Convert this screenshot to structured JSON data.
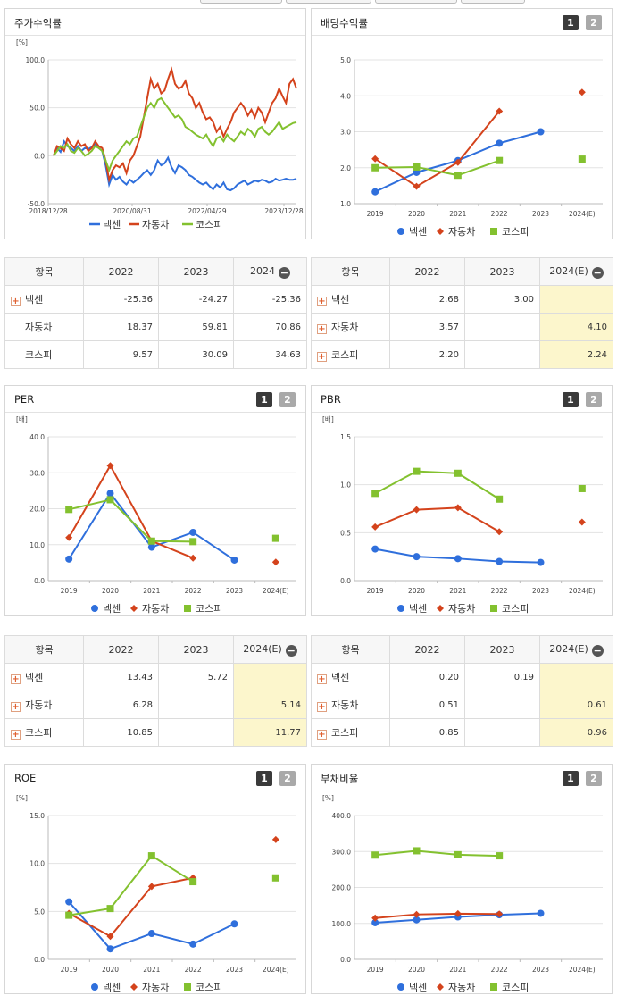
{
  "colors": {
    "nexen": "#2f6fdc",
    "auto": "#d4431c",
    "kospi": "#83c12f"
  },
  "series_names": [
    "넥센",
    "자동차",
    "코스피"
  ],
  "panels": {
    "stock": {
      "title": "주가수익률"
    },
    "dividend": {
      "title": "배당수익률",
      "btn1": "1",
      "btn2": "2"
    },
    "per": {
      "title": "PER",
      "btn1": "1",
      "btn2": "2"
    },
    "pbr": {
      "title": "PBR",
      "btn1": "1",
      "btn2": "2"
    },
    "roe": {
      "title": "ROE",
      "btn1": "1",
      "btn2": "2"
    },
    "debt": {
      "title": "부채비율",
      "btn1": "1",
      "btn2": "2"
    }
  },
  "tables": {
    "stock": {
      "headers": [
        "항목",
        "2022",
        "2023",
        "2024"
      ],
      "rows": [
        {
          "name": "넥센",
          "expand": true,
          "v": [
            "-25.36",
            "-24.27",
            "-25.36"
          ]
        },
        {
          "name": "자동차",
          "expand": false,
          "v": [
            "18.37",
            "59.81",
            "70.86"
          ]
        },
        {
          "name": "코스피",
          "expand": false,
          "v": [
            "9.57",
            "30.09",
            "34.63"
          ]
        }
      ]
    },
    "dividend": {
      "headers": [
        "항목",
        "2022",
        "2023",
        "2024(E)"
      ],
      "rows": [
        {
          "name": "넥센",
          "expand": true,
          "v": [
            "2.68",
            "3.00",
            ""
          ]
        },
        {
          "name": "자동차",
          "expand": true,
          "v": [
            "3.57",
            "",
            "4.10"
          ]
        },
        {
          "name": "코스피",
          "expand": true,
          "v": [
            "2.20",
            "",
            "2.24"
          ]
        }
      ]
    },
    "per": {
      "headers": [
        "항목",
        "2022",
        "2023",
        "2024(E)"
      ],
      "rows": [
        {
          "name": "넥센",
          "expand": true,
          "v": [
            "13.43",
            "5.72",
            ""
          ]
        },
        {
          "name": "자동차",
          "expand": true,
          "v": [
            "6.28",
            "",
            "5.14"
          ]
        },
        {
          "name": "코스피",
          "expand": true,
          "v": [
            "10.85",
            "",
            "11.77"
          ]
        }
      ]
    },
    "pbr": {
      "headers": [
        "항목",
        "2022",
        "2023",
        "2024(E)"
      ],
      "rows": [
        {
          "name": "넥센",
          "expand": true,
          "v": [
            "0.20",
            "0.19",
            ""
          ]
        },
        {
          "name": "자동차",
          "expand": true,
          "v": [
            "0.51",
            "",
            "0.61"
          ]
        },
        {
          "name": "코스피",
          "expand": true,
          "v": [
            "0.85",
            "",
            "0.96"
          ]
        }
      ]
    }
  },
  "chart_data": [
    {
      "id": "stock",
      "type": "line",
      "title": "주가수익률",
      "unit": "[%]",
      "ylim": [
        -50,
        100
      ],
      "yticks": [
        "100.0",
        "50.0",
        "0.0",
        "-50.0"
      ],
      "xticks": [
        "2018/12/28",
        "2020/08/31",
        "2022/04/29",
        "2023/12/28"
      ],
      "series": [
        {
          "name": "넥센",
          "values": [
            0,
            8,
            4,
            15,
            10,
            8,
            5,
            10,
            5,
            8,
            7,
            9,
            12,
            8,
            5,
            -10,
            -30,
            -20,
            -25,
            -22,
            -27,
            -30,
            -25,
            -28,
            -25,
            -22,
            -18,
            -15,
            -20,
            -15,
            -5,
            -10,
            -8,
            -2,
            -12,
            -18,
            -10,
            -12,
            -15,
            -20,
            -22,
            -25,
            -28,
            -30,
            -28,
            -32,
            -35,
            -30,
            -33,
            -28,
            -35,
            -36,
            -34,
            -30,
            -28,
            -26,
            -30,
            -28,
            -26,
            -27,
            -25,
            -26,
            -28,
            -27,
            -24,
            -26,
            -25,
            -24,
            -25,
            -25,
            -24
          ]
        },
        {
          "name": "자동차",
          "values": [
            0,
            10,
            8,
            5,
            18,
            12,
            8,
            15,
            10,
            12,
            5,
            8,
            15,
            10,
            8,
            -5,
            -25,
            -15,
            -10,
            -12,
            -8,
            -18,
            -5,
            0,
            10,
            20,
            40,
            60,
            80,
            70,
            75,
            65,
            68,
            80,
            90,
            75,
            70,
            72,
            78,
            65,
            60,
            50,
            55,
            45,
            38,
            40,
            35,
            25,
            30,
            20,
            28,
            35,
            45,
            50,
            55,
            50,
            42,
            48,
            40,
            50,
            45,
            35,
            45,
            55,
            60,
            70,
            62,
            55,
            75,
            80,
            70
          ]
        },
        {
          "name": "코스피",
          "values": [
            0,
            5,
            10,
            8,
            12,
            5,
            3,
            8,
            5,
            0,
            2,
            5,
            10,
            8,
            5,
            -5,
            -15,
            -5,
            0,
            5,
            10,
            15,
            12,
            18,
            20,
            30,
            40,
            50,
            55,
            50,
            58,
            60,
            55,
            50,
            45,
            40,
            42,
            38,
            30,
            28,
            25,
            22,
            20,
            18,
            22,
            15,
            10,
            18,
            20,
            15,
            22,
            18,
            15,
            20,
            25,
            22,
            28,
            25,
            20,
            28,
            30,
            25,
            22,
            25,
            30,
            35,
            28,
            30,
            32,
            34,
            35
          ]
        }
      ]
    },
    {
      "id": "dividend",
      "type": "line",
      "title": "배당수익률",
      "unit": "",
      "ylim": [
        1,
        5
      ],
      "yticks": [
        "5.0",
        "4.0",
        "3.0",
        "2.0",
        "1.0"
      ],
      "categories": [
        "2019",
        "2020",
        "2021",
        "2022",
        "2023",
        "2024(E)"
      ],
      "series": [
        {
          "name": "넥센",
          "values": [
            1.33,
            1.87,
            2.2,
            2.68,
            3.0,
            null
          ]
        },
        {
          "name": "자동차",
          "values": [
            2.25,
            1.48,
            2.15,
            3.57,
            null,
            4.1
          ]
        },
        {
          "name": "코스피",
          "values": [
            2.0,
            2.02,
            1.79,
            2.2,
            null,
            2.24
          ]
        }
      ]
    },
    {
      "id": "per",
      "type": "line",
      "title": "PER",
      "unit": "[배]",
      "ylim": [
        0,
        40
      ],
      "yticks": [
        "40.0",
        "30.0",
        "20.0",
        "10.0",
        "0.0"
      ],
      "categories": [
        "2019",
        "2020",
        "2021",
        "2022",
        "2023",
        "2024(E)"
      ],
      "series": [
        {
          "name": "넥센",
          "values": [
            6.0,
            24.3,
            9.3,
            13.43,
            5.72,
            null
          ]
        },
        {
          "name": "자동차",
          "values": [
            12.0,
            32.0,
            11.0,
            6.28,
            null,
            5.14
          ]
        },
        {
          "name": "코스피",
          "values": [
            19.8,
            22.5,
            11.0,
            10.85,
            null,
            11.77
          ]
        }
      ]
    },
    {
      "id": "pbr",
      "type": "line",
      "title": "PBR",
      "unit": "[배]",
      "ylim": [
        0,
        1.5
      ],
      "yticks": [
        "1.5",
        "1.0",
        "0.5",
        "0.0"
      ],
      "categories": [
        "2019",
        "2020",
        "2021",
        "2022",
        "2023",
        "2024(E)"
      ],
      "series": [
        {
          "name": "넥센",
          "values": [
            0.33,
            0.25,
            0.23,
            0.2,
            0.19,
            null
          ]
        },
        {
          "name": "자동차",
          "values": [
            0.56,
            0.74,
            0.76,
            0.51,
            null,
            0.61
          ]
        },
        {
          "name": "코스피",
          "values": [
            0.91,
            1.14,
            1.12,
            0.85,
            null,
            0.96
          ]
        }
      ]
    },
    {
      "id": "roe",
      "type": "line",
      "title": "ROE",
      "unit": "[%]",
      "ylim": [
        0,
        15
      ],
      "yticks": [
        "15.0",
        "10.0",
        "5.0",
        "0.0"
      ],
      "categories": [
        "2019",
        "2020",
        "2021",
        "2022",
        "2023",
        "2024(E)"
      ],
      "series": [
        {
          "name": "넥센",
          "values": [
            6.0,
            1.1,
            2.7,
            1.6,
            3.7,
            null
          ]
        },
        {
          "name": "자동차",
          "values": [
            4.8,
            2.4,
            7.6,
            8.5,
            null,
            12.5
          ]
        },
        {
          "name": "코스피",
          "values": [
            4.6,
            5.3,
            10.8,
            8.1,
            null,
            8.5
          ]
        }
      ]
    },
    {
      "id": "debt",
      "type": "line",
      "title": "부채비율",
      "unit": "[%]",
      "ylim": [
        0,
        400
      ],
      "yticks": [
        "400.0",
        "300.0",
        "200.0",
        "100.0",
        "0.0"
      ],
      "categories": [
        "2019",
        "2020",
        "2021",
        "2022",
        "2023",
        "2024(E)"
      ],
      "series": [
        {
          "name": "넥센",
          "values": [
            102,
            110,
            118,
            124,
            128,
            null
          ]
        },
        {
          "name": "자동차",
          "values": [
            115,
            125,
            127,
            126,
            null,
            null
          ]
        },
        {
          "name": "코스피",
          "values": [
            290,
            302,
            291,
            288,
            null,
            null
          ]
        }
      ]
    }
  ]
}
